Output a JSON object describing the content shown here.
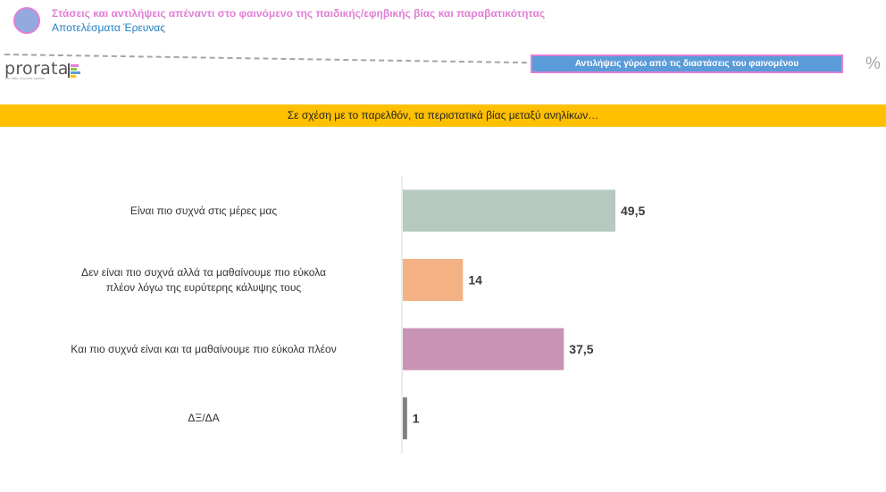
{
  "header": {
    "title": "Στάσεις και αντιλήψεις απέναντι στο φαινόμενο της παιδικής/εφηβικής βίας και παραβατικότητας",
    "subtitle": "Αποτελέσματα Έρευνας"
  },
  "logo": {
    "word": "prorata",
    "tagline": "the data of public opinion"
  },
  "topic_box": "Αντιλήψεις γύρω από τις διαστάσεις του φαινομένου",
  "unit_symbol": "%",
  "question": "Σε σχέση με το παρελθόν, τα περιστατικά βίας μεταξύ ανηλίκων…",
  "colors": {
    "title": "#e07fd4",
    "subtitle": "#1f7fc4",
    "topic_box": "#5a9bd9",
    "question_band": "#ffc000"
  },
  "chart_data": {
    "type": "bar",
    "orientation": "horizontal",
    "categories": [
      [
        "Είναι πιο συχνά στις μέρες μας"
      ],
      [
        "Δεν είναι πιο συχνά αλλά τα μαθαίνουμε πιο εύκολα",
        "πλέον λόγω της ευρύτερης κάλυψης τους"
      ],
      [
        "Και πιο συχνά είναι και τα μαθαίνουμε πιο εύκολα πλέον"
      ],
      [
        "ΔΞ/ΔΑ"
      ]
    ],
    "values": [
      49.5,
      14,
      37.5,
      1
    ],
    "value_labels": [
      "49,5",
      "14",
      "37,5",
      "1"
    ],
    "colors": [
      "#b5c9bf",
      "#f4b183",
      "#c993b5",
      "#808080"
    ],
    "xlim": [
      0,
      100
    ],
    "grid": false
  }
}
